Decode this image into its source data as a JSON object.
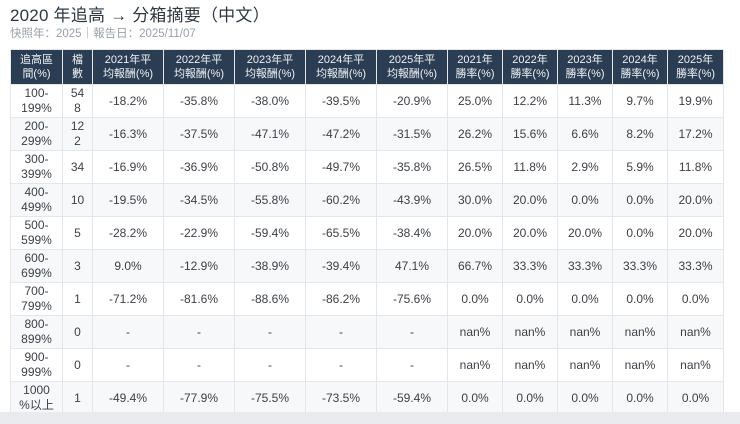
{
  "header": {
    "title": "2020 年追高 → 分箱摘要（中文）",
    "subtitle": "快照年：2025｜報告日：2025/11/07"
  },
  "chart_data": {
    "type": "table",
    "title": "2020 年追高 → 分箱摘要（中文）",
    "columns": [
      "追高區間(%)",
      "檔數",
      "2021年平均報酬(%)",
      "2022年平均報酬(%)",
      "2023年平均報酬(%)",
      "2024年平均報酬(%)",
      "2025年平均報酬(%)",
      "2021年勝率(%)",
      "2022年勝率(%)",
      "2023年勝率(%)",
      "2024年勝率(%)",
      "2025年勝率(%)"
    ],
    "rows": [
      [
        "100-199%",
        "548",
        "-18.2%",
        "-35.8%",
        "-38.0%",
        "-39.5%",
        "-20.9%",
        "25.0%",
        "12.2%",
        "11.3%",
        "9.7%",
        "19.9%"
      ],
      [
        "200-299%",
        "122",
        "-16.3%",
        "-37.5%",
        "-47.1%",
        "-47.2%",
        "-31.5%",
        "26.2%",
        "15.6%",
        "6.6%",
        "8.2%",
        "17.2%"
      ],
      [
        "300-399%",
        "34",
        "-16.9%",
        "-36.9%",
        "-50.8%",
        "-49.7%",
        "-35.8%",
        "26.5%",
        "11.8%",
        "2.9%",
        "5.9%",
        "11.8%"
      ],
      [
        "400-499%",
        "10",
        "-19.5%",
        "-34.5%",
        "-55.8%",
        "-60.2%",
        "-43.9%",
        "30.0%",
        "20.0%",
        "0.0%",
        "0.0%",
        "20.0%"
      ],
      [
        "500-599%",
        "5",
        "-28.2%",
        "-22.9%",
        "-59.4%",
        "-65.5%",
        "-38.4%",
        "20.0%",
        "20.0%",
        "20.0%",
        "0.0%",
        "20.0%"
      ],
      [
        "600-699%",
        "3",
        "9.0%",
        "-12.9%",
        "-38.9%",
        "-39.4%",
        "47.1%",
        "66.7%",
        "33.3%",
        "33.3%",
        "33.3%",
        "33.3%"
      ],
      [
        "700-799%",
        "1",
        "-71.2%",
        "-81.6%",
        "-88.6%",
        "-86.2%",
        "-75.6%",
        "0.0%",
        "0.0%",
        "0.0%",
        "0.0%",
        "0.0%"
      ],
      [
        "800-899%",
        "0",
        "-",
        "-",
        "-",
        "-",
        "-",
        "nan%",
        "nan%",
        "nan%",
        "nan%",
        "nan%"
      ],
      [
        "900-999%",
        "0",
        "-",
        "-",
        "-",
        "-",
        "-",
        "nan%",
        "nan%",
        "nan%",
        "nan%",
        "nan%"
      ],
      [
        "1000%以上",
        "1",
        "-49.4%",
        "-77.9%",
        "-75.5%",
        "-73.5%",
        "-59.4%",
        "0.0%",
        "0.0%",
        "0.0%",
        "0.0%",
        "0.0%"
      ]
    ]
  },
  "colors": {
    "header_bg": "#2b3d52",
    "header_text": "#eef2f6",
    "row_stripe": "#f6f8fa",
    "border": "#e3e6ea",
    "bottom_bar": "#e9ebee"
  }
}
